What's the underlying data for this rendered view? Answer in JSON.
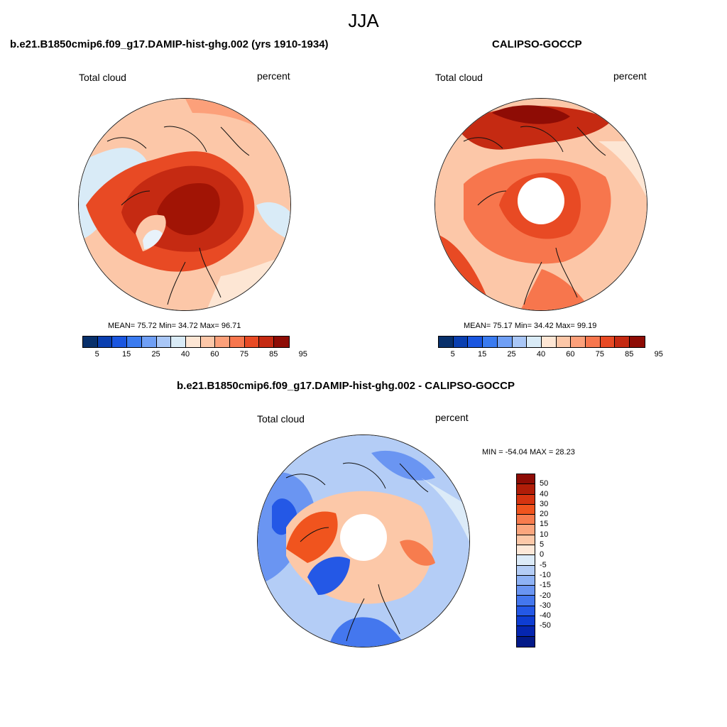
{
  "main_title": "JJA",
  "panels": [
    {
      "title": "b.e21.B1850cmip6.f09_g17.DAMIP-hist-ghg.002 (yrs 1910-1934)",
      "left_label": "Total cloud",
      "right_label": "percent",
      "stats": "MEAN=  75.72  Min=  34.72  Max=  96.71",
      "colors": [
        "#08306b",
        "#0a3fb0",
        "#1a56e0",
        "#3a7bf0",
        "#6f9ff5",
        "#a9c7f7",
        "#d9ebf7",
        "#fde6d4",
        "#fcc7a8",
        "#fca07a",
        "#f7764d",
        "#e84a24",
        "#c52a12",
        "#8e0c05"
      ],
      "ticks": [
        "5",
        "15",
        "25",
        "40",
        "60",
        "75",
        "85",
        "95"
      ]
    },
    {
      "title": "CALIPSO-GOCCP",
      "left_label": "Total cloud",
      "right_label": "percent",
      "stats": "MEAN=  75.17  Min=  34.42  Max=  99.19",
      "colors": [
        "#08306b",
        "#0a3fb0",
        "#1a56e0",
        "#3a7bf0",
        "#6f9ff5",
        "#a9c7f7",
        "#d9ebf7",
        "#fde6d4",
        "#fcc7a8",
        "#fca07a",
        "#f7764d",
        "#e84a24",
        "#c52a12",
        "#8e0c05"
      ],
      "ticks": [
        "5",
        "15",
        "25",
        "40",
        "60",
        "75",
        "85",
        "95"
      ]
    },
    {
      "title": "b.e21.B1850cmip6.f09_g17.DAMIP-hist-ghg.002 - CALIPSO-GOCCP",
      "left_label": "Total cloud",
      "right_label": "percent",
      "stats": "MIN = -54.04 MAX =  28.23",
      "colors": [
        "#8e0c05",
        "#b01d08",
        "#d63410",
        "#f0541e",
        "#f77c4e",
        "#fba67e",
        "#fcc8a8",
        "#fde8d8",
        "#dcebf8",
        "#b4cdf6",
        "#8eb2f5",
        "#6a95f2",
        "#4477ee",
        "#2458e6",
        "#0e3dd2",
        "#0526b0",
        "#031a88"
      ],
      "ticks": [
        "50",
        "40",
        "30",
        "20",
        "15",
        "10",
        "5",
        "0",
        "-5",
        "-10",
        "-15",
        "-20",
        "-30",
        "-40",
        "-50"
      ]
    }
  ]
}
